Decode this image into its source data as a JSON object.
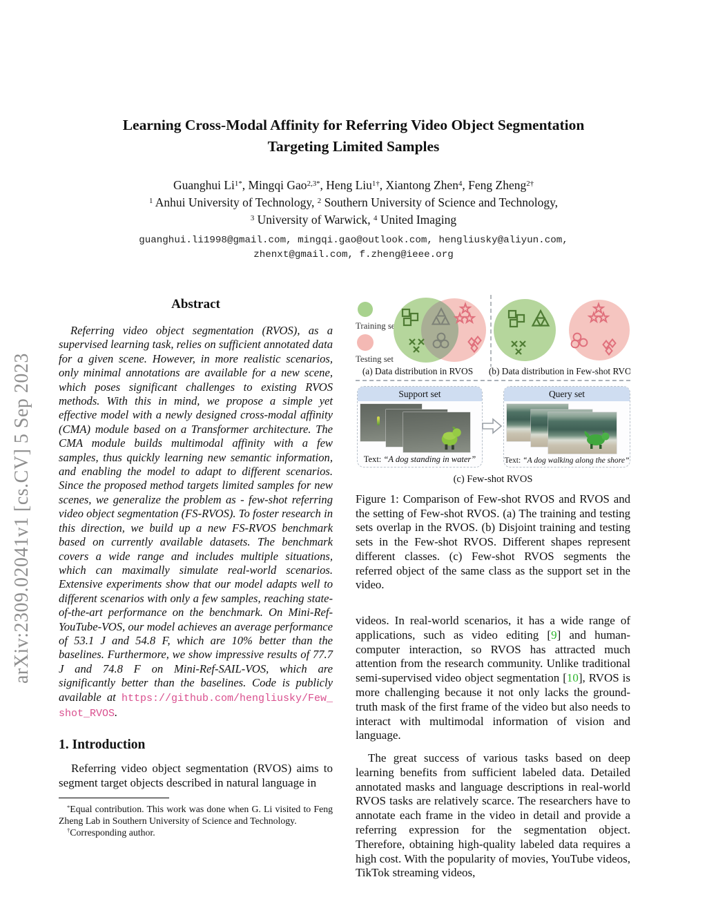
{
  "colors": {
    "link_pink": "#d94f8e",
    "citation_green": "#2db52d",
    "training_green_fill": "#b5d69c",
    "testing_pink_fill": "#f5c5c0",
    "overlap_olive": "#a9ae95",
    "shape_green": "#4e7b33",
    "shape_gray": "#7d8177",
    "shape_pink": "#e0707c",
    "panel_header_blue": "#cfddf1",
    "watermark_gray": "#8f8f8f"
  },
  "watermark": {
    "text": "arXiv:2309.02041v1  [cs.CV]  5 Sep 2023"
  },
  "header": {
    "title_line1": "Learning Cross-Modal Affinity for Referring Video Object Segmentation",
    "title_line2": "Targeting Limited Samples",
    "authors": [
      {
        "t": "Guanghui Li"
      },
      {
        "t": "1*",
        "sup": 1
      },
      {
        "t": ", Mingqi Gao"
      },
      {
        "t": "2,3*",
        "sup": 1
      },
      {
        "t": ", Heng Liu"
      },
      {
        "t": "1†",
        "sup": 1
      },
      {
        "t": ", Xiantong Zhen"
      },
      {
        "t": "4",
        "sup": 1
      },
      {
        "t": ", Feng Zheng"
      },
      {
        "t": "2†",
        "sup": 1
      }
    ],
    "affiliation_line1": [
      {
        "t": "1",
        "sup": 1
      },
      {
        "t": " Anhui University of Technology, "
      },
      {
        "t": "2",
        "sup": 1
      },
      {
        "t": " Southern University of Science and Technology,"
      }
    ],
    "affiliation_line2": [
      {
        "t": "3",
        "sup": 1
      },
      {
        "t": " University of Warwick, "
      },
      {
        "t": "4",
        "sup": 1
      },
      {
        "t": " United Imaging"
      }
    ],
    "emails_line1": "guanghui.li1998@gmail.com, mingqi.gao@outlook.com, hengliusky@aliyun.com,",
    "emails_line2": "zhenxt@gmail.com, f.zheng@ieee.org"
  },
  "abstract": {
    "heading": "Abstract",
    "body": [
      {
        "t": "Referring video object segmentation (RVOS), as a supervised learning task, relies on sufficient annotated data for a given scene. However, in more realistic scenarios, only minimal annotations are available for a new scene, which poses significant challenges to existing RVOS methods. With this in mind, we propose a simple yet effective model with a newly designed cross-modal affinity (CMA) module based on a Transformer architecture. The CMA module builds multimodal affinity with a few samples, thus quickly learning new semantic information, and enabling the model to adapt to different scenarios. Since the proposed method targets limited samples for new scenes, we generalize the problem as - few-shot referring video object segmentation (FS-RVOS). To foster research in this direction, we build up a new FS-RVOS benchmark based on currently available datasets. The benchmark covers a wide range and includes multiple situations, which can maximally simulate real-world scenarios. Extensive experiments show that our model adapts well to different scenarios with only a few samples, reaching state-of-the-art performance on the benchmark. On Mini-Ref-YouTube-VOS, our model achieves an average performance of 53.1 "
      },
      {
        "t": "J",
        "cls": "mcal"
      },
      {
        "t": " and 54.8 "
      },
      {
        "t": "F",
        "cls": "mcal"
      },
      {
        "t": ", which are 10% better than the baselines. Furthermore, we show impressive results of 77.7 "
      },
      {
        "t": "J",
        "cls": "mcal"
      },
      {
        "t": " and 74.8 "
      },
      {
        "t": "F",
        "cls": "mcal"
      },
      {
        "t": " on Mini-Ref-SAIL-VOS, which are significantly better than the baselines. Code is publicly available at "
      },
      {
        "t": "https://github.com/hengliusky/Few_shot_RVOS",
        "cls": "link",
        "name": "github-link",
        "i": true
      },
      {
        "t": "."
      }
    ]
  },
  "introduction": {
    "heading": "1. Introduction",
    "paragraph": "Referring video object segmentation (RVOS) aims to segment target objects described in natural language in"
  },
  "footnotes": {
    "fn1": [
      {
        "t": "*",
        "sup": 1
      },
      {
        "t": "Equal contribution. This work was done when G. Li visited to Feng Zheng Lab in Southern University of Science and Technology."
      }
    ],
    "fn2": [
      {
        "t": "†",
        "sup": 1
      },
      {
        "t": "Corresponding author."
      }
    ]
  },
  "figure1": {
    "legend_training": "Training set",
    "legend_testing": "Testing set",
    "caption_a": "(a) Data distribution in RVOS",
    "caption_b": "(b) Data distribution in Few-shot RVOS",
    "caption_c": "(c) Few-shot RVOS",
    "support": {
      "header": "Support set",
      "text": [
        {
          "t": "Text: ",
          "cls": "cap-label"
        },
        {
          "t": "“A dog standing in water”",
          "cls": "cap-quote"
        }
      ]
    },
    "query": {
      "header": "Query set",
      "text": [
        {
          "t": "Text: ",
          "cls": "cap-label"
        },
        {
          "t": "“A dog walking along the shore”",
          "cls": "cap-quote"
        }
      ]
    },
    "caption": "Figure 1: Comparison of Few-shot RVOS and RVOS and the setting of Few-shot RVOS. (a) The training and testing sets overlap in the RVOS. (b) Disjoint training and testing sets in the Few-shot RVOS. Different shapes represent different classes. (c) Few-shot RVOS segments the referred object of the same class as the support set in the video."
  },
  "body": {
    "paragraph1": [
      {
        "t": "videos. In real-world scenarios, it has a wide range of applications, such as video editing ["
      },
      {
        "t": "9",
        "cls": "cite",
        "name": "citation-9",
        "i": true
      },
      {
        "t": "] and human-computer interaction, so RVOS has attracted much attention from the research community. Unlike traditional semi-supervised video object segmentation ["
      },
      {
        "t": "10",
        "cls": "cite",
        "name": "citation-10",
        "i": true
      },
      {
        "t": "], RVOS is more challenging because it not only lacks the ground-truth mask of the first frame of the video but also needs to interact with multimodal information of vision and language."
      }
    ],
    "paragraph2": "The great success of various tasks based on deep learning benefits from sufficient labeled data. Detailed annotated masks and language descriptions in real-world RVOS tasks are relatively scarce. The researchers have to annotate each frame in the video in detail and provide a referring expression for the segmentation object. Therefore, obtaining high-quality labeled data requires a high cost. With the popularity of movies, YouTube videos, TikTok streaming videos,"
  }
}
